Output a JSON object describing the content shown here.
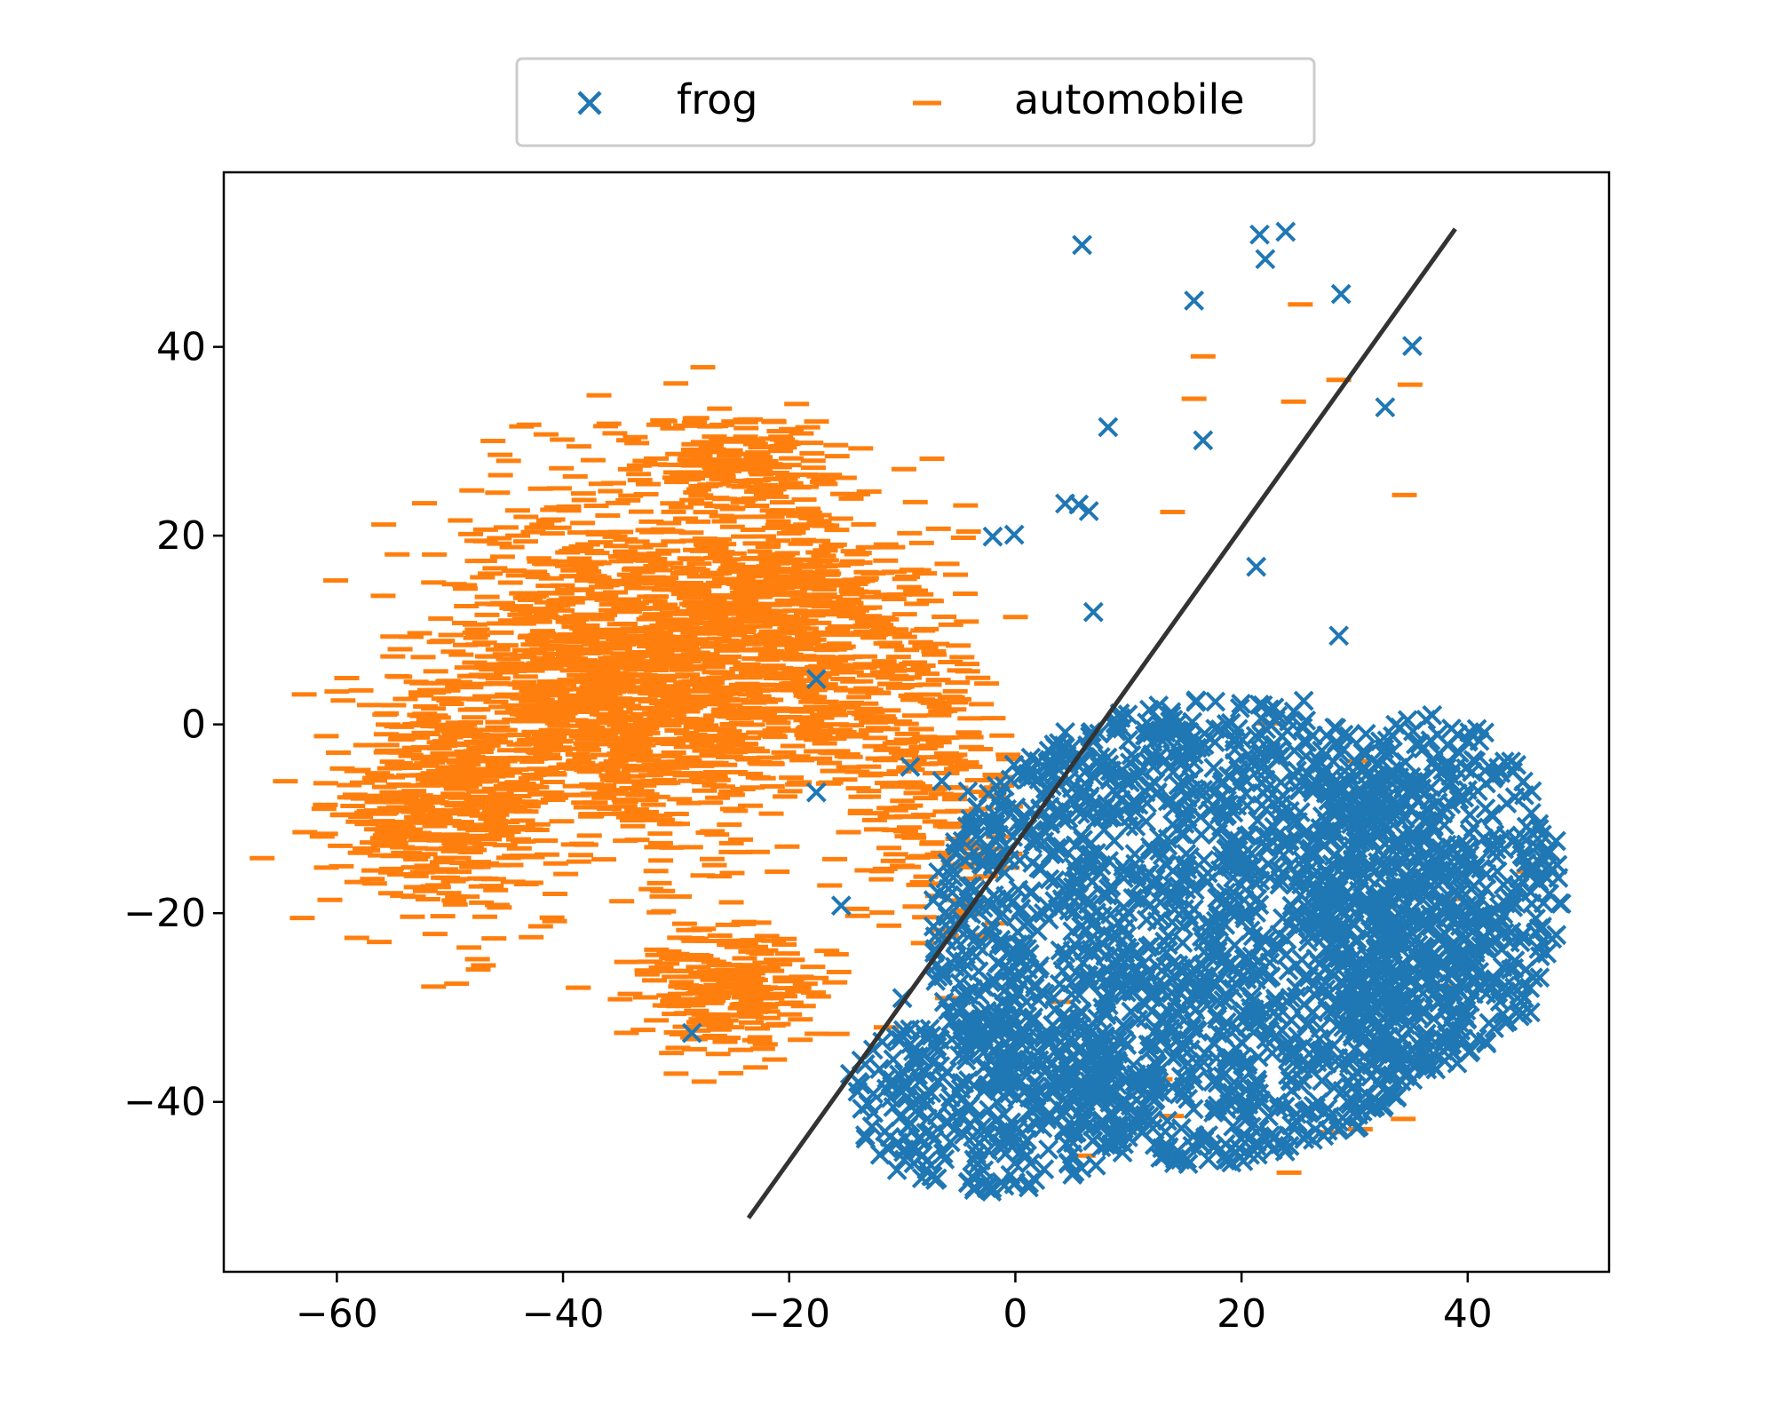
{
  "chart_data": {
    "type": "scatter",
    "title": "",
    "xlabel": "",
    "ylabel": "",
    "xlim": [
      -70,
      52.5
    ],
    "ylim": [
      -58,
      58.5
    ],
    "x_ticks": [
      -60,
      -40,
      -20,
      0,
      20,
      40
    ],
    "y_ticks": [
      -40,
      -20,
      0,
      20,
      40
    ],
    "x_tick_labels": [
      "−60",
      "−40",
      "−20",
      "0",
      "20",
      "40"
    ],
    "y_tick_labels": [
      "−40",
      "−20",
      "0",
      "20",
      "40"
    ],
    "grid": false,
    "legend": {
      "position": "top-center-outside",
      "columns": 2
    },
    "series": [
      {
        "name": "frog",
        "marker": "x",
        "color": "#1f77b4",
        "clusters": [
          {
            "center": [
              17,
              -22
            ],
            "spread": [
              13,
              13
            ],
            "count": 1800
          },
          {
            "center": [
              37,
              -18
            ],
            "spread": [
              6,
              10
            ],
            "count": 500
          },
          {
            "center": [
              -2,
              -40
            ],
            "spread": [
              7,
              5
            ],
            "count": 350
          }
        ],
        "points": [
          [
            5.9,
            50.8
          ],
          [
            21.6,
            51.9
          ],
          [
            23.9,
            52.2
          ],
          [
            22.1,
            49.3
          ],
          [
            15.8,
            44.9
          ],
          [
            28.8,
            45.6
          ],
          [
            35.1,
            40.1
          ],
          [
            32.7,
            33.6
          ],
          [
            8.2,
            31.5
          ],
          [
            16.6,
            30.1
          ],
          [
            4.4,
            23.4
          ],
          [
            5.6,
            23.3
          ],
          [
            6.5,
            22.6
          ],
          [
            -2.0,
            19.9
          ],
          [
            -0.1,
            20.1
          ],
          [
            6.9,
            11.9
          ],
          [
            21.3,
            16.7
          ],
          [
            28.6,
            9.4
          ],
          [
            -15.4,
            -19.2
          ],
          [
            -17.6,
            -7.2
          ],
          [
            -17.6,
            4.8
          ],
          [
            -9.3,
            -4.5
          ],
          [
            -4.2,
            -7.1
          ],
          [
            -1.6,
            -14.0
          ],
          [
            -12.0,
            -36.5
          ],
          [
            -10.0,
            -29.0
          ],
          [
            -28.6,
            -32.7
          ],
          [
            5.0,
            -2.5
          ],
          [
            45.0,
            -7.5
          ],
          [
            46.5,
            -14.8
          ],
          [
            34.5,
            -4.0
          ],
          [
            31.0,
            -1.0
          ],
          [
            25.5,
            2.5
          ],
          [
            -6.5,
            -6.0
          ]
        ]
      },
      {
        "name": "automobile",
        "marker": "_",
        "color": "#ff7f0e",
        "clusters": [
          {
            "center": [
              -35,
              5
            ],
            "spread": [
              10,
              12
            ],
            "count": 1300
          },
          {
            "center": [
              -20,
              10
            ],
            "spread": [
              8,
              10
            ],
            "count": 700
          },
          {
            "center": [
              -50,
              -8
            ],
            "spread": [
              6,
              8
            ],
            "count": 500
          },
          {
            "center": [
              -25,
              -28
            ],
            "spread": [
              5,
              4
            ],
            "count": 250
          },
          {
            "center": [
              -8,
              -5
            ],
            "spread": [
              5,
              10
            ],
            "count": 250
          },
          {
            "center": [
              -25,
              28
            ],
            "spread": [
              5,
              3
            ],
            "count": 150
          }
        ],
        "points": [
          [
            25.2,
            44.5
          ],
          [
            16.6,
            39.0
          ],
          [
            15.8,
            34.5
          ],
          [
            24.6,
            34.2
          ],
          [
            28.6,
            36.5
          ],
          [
            34.9,
            36.0
          ],
          [
            34.4,
            24.3
          ],
          [
            13.9,
            22.5
          ],
          [
            22.5,
            0.1
          ],
          [
            30.3,
            -3.9
          ],
          [
            27.2,
            -21.4
          ],
          [
            38.4,
            -18.5
          ],
          [
            45.4,
            -15.6
          ],
          [
            37.5,
            -27.7
          ],
          [
            -6.0,
            -29.0
          ],
          [
            4.1,
            -29.4
          ],
          [
            12.8,
            -37.6
          ],
          [
            13.8,
            -41.5
          ],
          [
            33.1,
            -35.5
          ],
          [
            34.3,
            -41.8
          ],
          [
            30.5,
            -42.9
          ],
          [
            27.8,
            -43.2
          ],
          [
            6.0,
            -45.7
          ],
          [
            24.2,
            -47.5
          ],
          [
            -21.5,
            22.0
          ],
          [
            -30.0,
            -37.0
          ],
          [
            -44.0,
            20.0
          ]
        ]
      },
      {
        "name": "",
        "type": "line",
        "color": "#333333",
        "x": [
          -23.6,
          38.9
        ],
        "y": [
          -52.3,
          52.5
        ]
      }
    ]
  }
}
